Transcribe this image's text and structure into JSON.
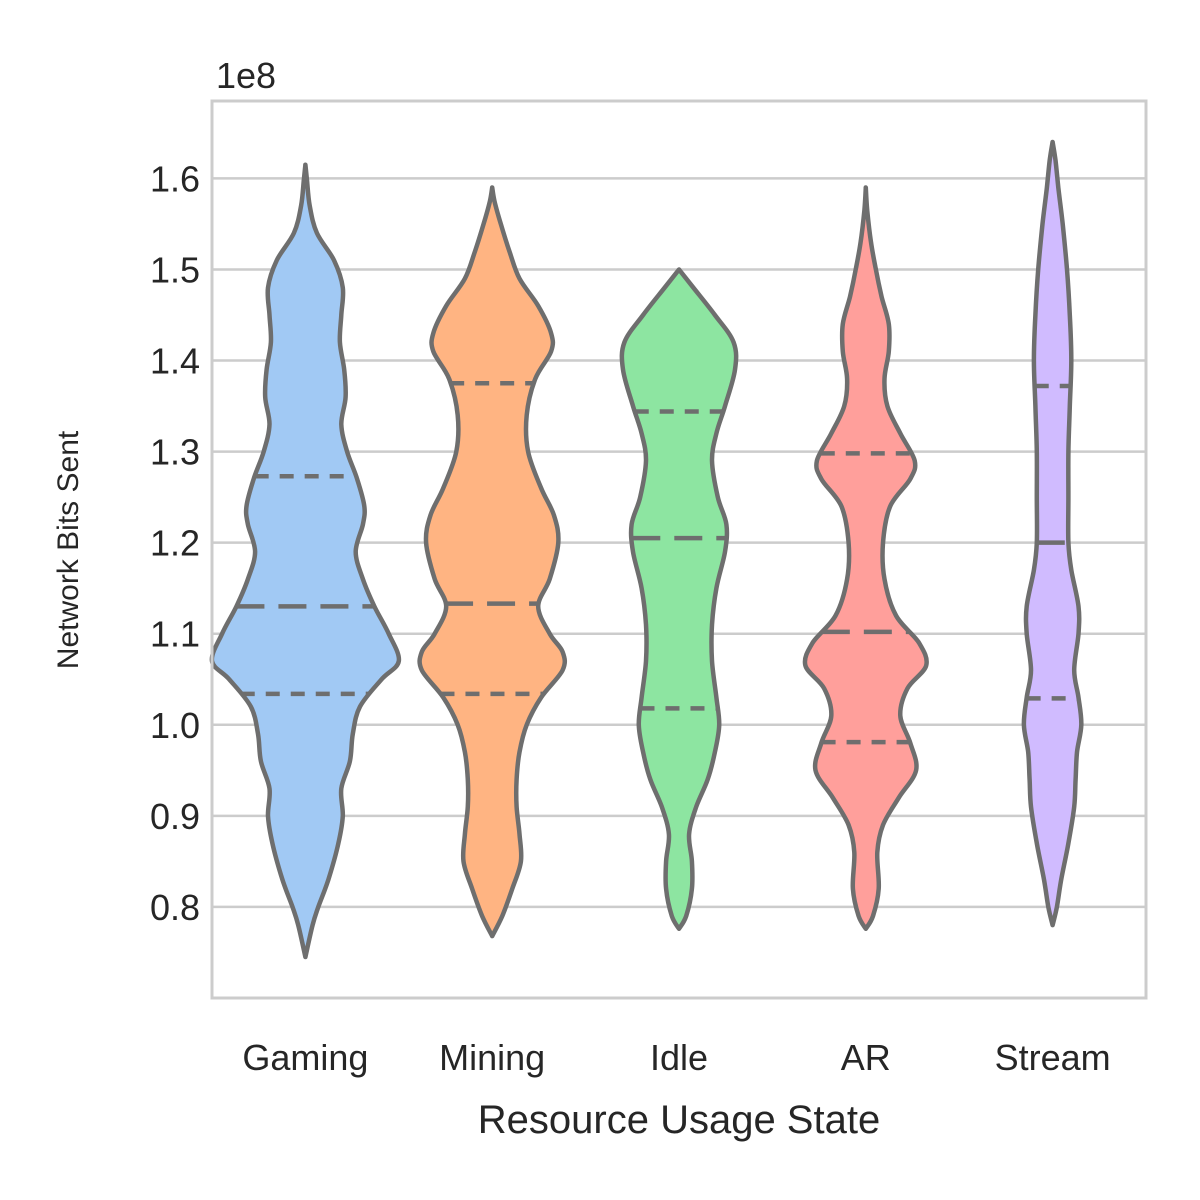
{
  "chart_data": {
    "type": "violin",
    "xlabel": "Resource Usage State",
    "ylabel": "Network Bits Sent",
    "y_offset_label": "1e8",
    "y_scale_factor": 100000000,
    "ylim": [
      0.7,
      1.685
    ],
    "yticks": [
      0.8,
      0.9,
      1.0,
      1.1,
      1.2,
      1.3,
      1.4,
      1.5,
      1.6
    ],
    "ytick_labels": [
      "0.8",
      "0.9",
      "1.0",
      "1.1",
      "1.2",
      "1.3",
      "1.4",
      "1.5",
      "1.6"
    ],
    "grid": "horizontal",
    "inner": "quartile",
    "categories": [
      "Gaming",
      "Mining",
      "Idle",
      "AR",
      "Stream"
    ],
    "colors": [
      "#a1c9f4",
      "#ffb482",
      "#8de5a1",
      "#ff9f9b",
      "#d0bbff"
    ],
    "outline_color": "#6e6e6e",
    "violins": [
      {
        "name": "Gaming",
        "quartiles": [
          1.034,
          1.13,
          1.273
        ],
        "profile": [
          [
            0.745,
            0.0
          ],
          [
            0.78,
            0.025
          ],
          [
            0.8,
            0.045
          ],
          [
            0.83,
            0.08
          ],
          [
            0.87,
            0.115
          ],
          [
            0.9,
            0.13
          ],
          [
            0.93,
            0.125
          ],
          [
            0.96,
            0.155
          ],
          [
            0.99,
            0.165
          ],
          [
            1.02,
            0.19
          ],
          [
            1.05,
            0.265
          ],
          [
            1.07,
            0.325
          ],
          [
            1.1,
            0.29
          ],
          [
            1.13,
            0.24
          ],
          [
            1.16,
            0.2
          ],
          [
            1.19,
            0.175
          ],
          [
            1.22,
            0.2
          ],
          [
            1.24,
            0.205
          ],
          [
            1.27,
            0.18
          ],
          [
            1.3,
            0.145
          ],
          [
            1.33,
            0.125
          ],
          [
            1.36,
            0.14
          ],
          [
            1.39,
            0.135
          ],
          [
            1.42,
            0.12
          ],
          [
            1.45,
            0.125
          ],
          [
            1.48,
            0.13
          ],
          [
            1.51,
            0.1
          ],
          [
            1.54,
            0.04
          ],
          [
            1.57,
            0.015
          ],
          [
            1.6,
            0.005
          ],
          [
            1.615,
            0.0
          ]
        ]
      },
      {
        "name": "Mining",
        "quartiles": [
          1.034,
          1.133,
          1.375
        ],
        "profile": [
          [
            0.768,
            0.0
          ],
          [
            0.79,
            0.035
          ],
          [
            0.82,
            0.07
          ],
          [
            0.85,
            0.1
          ],
          [
            0.88,
            0.095
          ],
          [
            0.91,
            0.085
          ],
          [
            0.94,
            0.085
          ],
          [
            0.97,
            0.095
          ],
          [
            1.0,
            0.12
          ],
          [
            1.03,
            0.17
          ],
          [
            1.06,
            0.245
          ],
          [
            1.08,
            0.245
          ],
          [
            1.1,
            0.2
          ],
          [
            1.13,
            0.16
          ],
          [
            1.16,
            0.2
          ],
          [
            1.2,
            0.23
          ],
          [
            1.23,
            0.215
          ],
          [
            1.26,
            0.17
          ],
          [
            1.3,
            0.125
          ],
          [
            1.34,
            0.12
          ],
          [
            1.38,
            0.15
          ],
          [
            1.41,
            0.205
          ],
          [
            1.43,
            0.205
          ],
          [
            1.46,
            0.16
          ],
          [
            1.49,
            0.095
          ],
          [
            1.52,
            0.06
          ],
          [
            1.55,
            0.03
          ],
          [
            1.575,
            0.008
          ],
          [
            1.59,
            0.0
          ]
        ]
      },
      {
        "name": "Idle",
        "quartiles": [
          1.018,
          1.205,
          1.344
        ],
        "profile": [
          [
            0.776,
            0.0
          ],
          [
            0.79,
            0.025
          ],
          [
            0.82,
            0.045
          ],
          [
            0.85,
            0.045
          ],
          [
            0.88,
            0.035
          ],
          [
            0.91,
            0.06
          ],
          [
            0.94,
            0.1
          ],
          [
            0.97,
            0.125
          ],
          [
            1.0,
            0.14
          ],
          [
            1.03,
            0.13
          ],
          [
            1.07,
            0.115
          ],
          [
            1.11,
            0.115
          ],
          [
            1.15,
            0.13
          ],
          [
            1.19,
            0.16
          ],
          [
            1.22,
            0.165
          ],
          [
            1.25,
            0.135
          ],
          [
            1.29,
            0.115
          ],
          [
            1.32,
            0.13
          ],
          [
            1.35,
            0.16
          ],
          [
            1.39,
            0.195
          ],
          [
            1.42,
            0.19
          ],
          [
            1.45,
            0.125
          ],
          [
            1.48,
            0.05
          ],
          [
            1.5,
            0.0
          ]
        ]
      },
      {
        "name": "AR",
        "quartiles": [
          0.981,
          1.102,
          1.298
        ],
        "profile": [
          [
            0.776,
            0.0
          ],
          [
            0.79,
            0.025
          ],
          [
            0.82,
            0.045
          ],
          [
            0.86,
            0.04
          ],
          [
            0.89,
            0.06
          ],
          [
            0.92,
            0.115
          ],
          [
            0.95,
            0.175
          ],
          [
            0.98,
            0.155
          ],
          [
            1.01,
            0.12
          ],
          [
            1.04,
            0.145
          ],
          [
            1.065,
            0.21
          ],
          [
            1.09,
            0.185
          ],
          [
            1.12,
            0.105
          ],
          [
            1.16,
            0.065
          ],
          [
            1.2,
            0.06
          ],
          [
            1.24,
            0.085
          ],
          [
            1.27,
            0.155
          ],
          [
            1.29,
            0.17
          ],
          [
            1.32,
            0.12
          ],
          [
            1.35,
            0.075
          ],
          [
            1.38,
            0.065
          ],
          [
            1.41,
            0.08
          ],
          [
            1.44,
            0.08
          ],
          [
            1.47,
            0.055
          ],
          [
            1.5,
            0.035
          ],
          [
            1.53,
            0.018
          ],
          [
            1.565,
            0.005
          ],
          [
            1.59,
            0.0
          ]
        ]
      },
      {
        "name": "Stream",
        "quartiles": [
          1.029,
          1.2,
          1.372
        ],
        "profile": [
          [
            0.78,
            0.0
          ],
          [
            0.8,
            0.015
          ],
          [
            0.83,
            0.03
          ],
          [
            0.87,
            0.055
          ],
          [
            0.91,
            0.075
          ],
          [
            0.94,
            0.08
          ],
          [
            0.97,
            0.085
          ],
          [
            1.0,
            0.1
          ],
          [
            1.03,
            0.09
          ],
          [
            1.06,
            0.075
          ],
          [
            1.1,
            0.09
          ],
          [
            1.13,
            0.09
          ],
          [
            1.17,
            0.065
          ],
          [
            1.2,
            0.055
          ],
          [
            1.25,
            0.055
          ],
          [
            1.3,
            0.055
          ],
          [
            1.35,
            0.06
          ],
          [
            1.4,
            0.065
          ],
          [
            1.45,
            0.06
          ],
          [
            1.5,
            0.05
          ],
          [
            1.55,
            0.035
          ],
          [
            1.59,
            0.02
          ],
          [
            1.62,
            0.01
          ],
          [
            1.64,
            0.0
          ]
        ]
      }
    ]
  }
}
